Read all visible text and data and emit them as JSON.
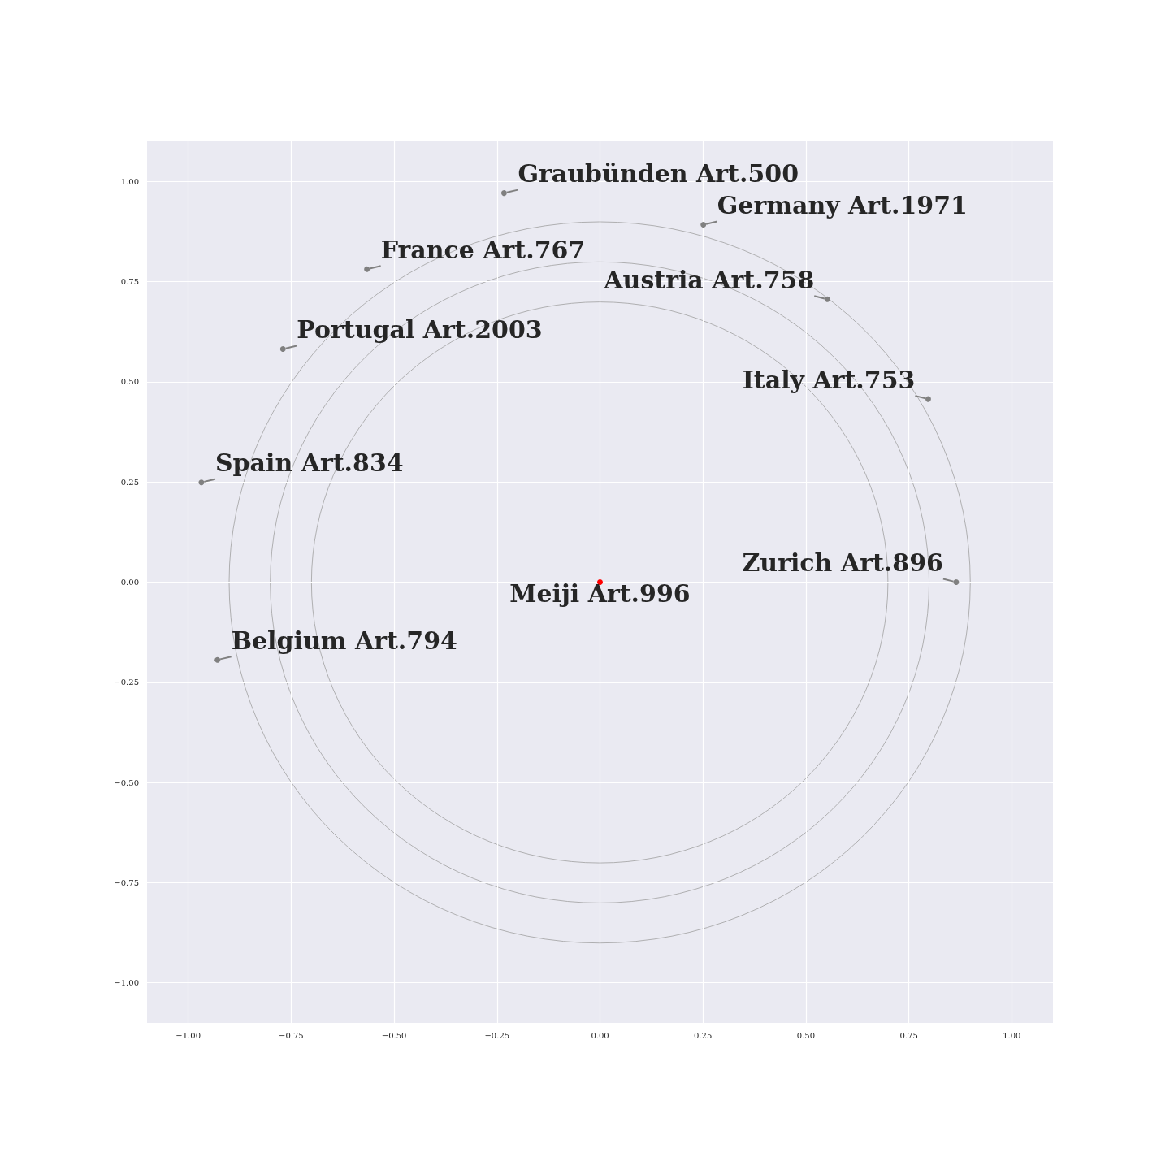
{
  "chart_data": {
    "type": "scatter",
    "xlim": [
      -1.1,
      1.1
    ],
    "ylim": [
      -1.1,
      1.1
    ],
    "xticks": [
      {
        "value": -1,
        "label": "−1.00"
      },
      {
        "value": -0.75,
        "label": "−0.75"
      },
      {
        "value": -0.5,
        "label": "−0.50"
      },
      {
        "value": -0.25,
        "label": "−0.25"
      },
      {
        "value": 0,
        "label": "0.00"
      },
      {
        "value": 0.25,
        "label": "0.25"
      },
      {
        "value": 0.5,
        "label": "0.50"
      },
      {
        "value": 0.75,
        "label": "0.75"
      },
      {
        "value": 1,
        "label": "1.00"
      }
    ],
    "yticks": [
      {
        "value": -1,
        "label": "−1.00"
      },
      {
        "value": -0.75,
        "label": "−0.75"
      },
      {
        "value": -0.5,
        "label": "−0.50"
      },
      {
        "value": -0.25,
        "label": "−0.25"
      },
      {
        "value": 0,
        "label": "0.00"
      },
      {
        "value": 0.25,
        "label": "0.25"
      },
      {
        "value": 0.5,
        "label": "0.50"
      },
      {
        "value": 0.75,
        "label": "0.75"
      },
      {
        "value": 1,
        "label": "1.00"
      }
    ],
    "grid": true,
    "marker": "circle",
    "series": [
      {
        "color": "#808080",
        "x": [
          -0.233,
          0.251,
          -0.566,
          0.552,
          -0.77,
          0.797,
          -0.968,
          0.865,
          -0.929
        ],
        "values": [
          0.971,
          0.892,
          0.781,
          0.706,
          0.582,
          0.457,
          0.249,
          0,
          -0.194
        ]
      },
      {
        "color": "#ff0000",
        "x": [
          0
        ],
        "values": [
          0
        ]
      }
    ],
    "annotations": [
      {
        "text": "Graubünden Art.500",
        "x": -0.233,
        "y": 0.971
      },
      {
        "text": "Germany Art.1971",
        "x": 0.251,
        "y": 0.892
      },
      {
        "text": "France Art.767",
        "x": -0.566,
        "y": 0.781
      },
      {
        "text": "Austria Art.758",
        "x": 0.552,
        "y": 0.706
      },
      {
        "text": "Portugal Art.2003",
        "x": -0.77,
        "y": 0.582
      },
      {
        "text": "Italy Art.753",
        "x": 0.797,
        "y": 0.457
      },
      {
        "text": "Spain Art.834",
        "x": -0.968,
        "y": 0.249
      },
      {
        "text": "Zurich Art.896",
        "x": 0.865,
        "y": 0
      },
      {
        "text": "Belgium Art.794",
        "x": -0.929,
        "y": -0.194
      },
      {
        "text": "Meiji Art.996",
        "x": 0,
        "y": 0
      }
    ]
  }
}
